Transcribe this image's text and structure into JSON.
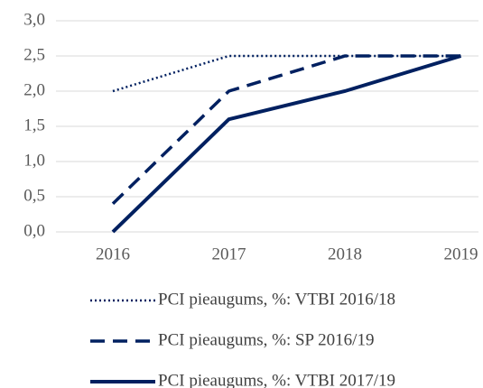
{
  "chart_data": {
    "type": "line",
    "categories": [
      "2016",
      "2017",
      "2018",
      "2019"
    ],
    "series": [
      {
        "name": "PCI pieaugums, %: VTBI 2016/18",
        "color": "#002060",
        "dash": "dotted",
        "values": [
          2.0,
          2.5,
          2.5,
          2.5
        ]
      },
      {
        "name": "PCI pieaugums, %: SP 2016/19",
        "color": "#002060",
        "dash": "dashed",
        "values": [
          0.4,
          2.0,
          2.5,
          2.5
        ]
      },
      {
        "name": "PCI pieaugums, %: VTBI 2017/19",
        "color": "#002060",
        "dash": "solid",
        "values": [
          0.0,
          1.6,
          2.0,
          2.5
        ]
      }
    ],
    "ylim": [
      0,
      3
    ],
    "yticks": [
      {
        "value": 0,
        "label": "0,0"
      },
      {
        "value": 0.5,
        "label": "0,5"
      },
      {
        "value": 1,
        "label": "1,0"
      },
      {
        "value": 1.5,
        "label": "1,5"
      },
      {
        "value": 2,
        "label": "2,0"
      },
      {
        "value": 2.5,
        "label": "2,5"
      },
      {
        "value": 3,
        "label": "3,0"
      }
    ],
    "grid": true,
    "legend": "bottom"
  }
}
